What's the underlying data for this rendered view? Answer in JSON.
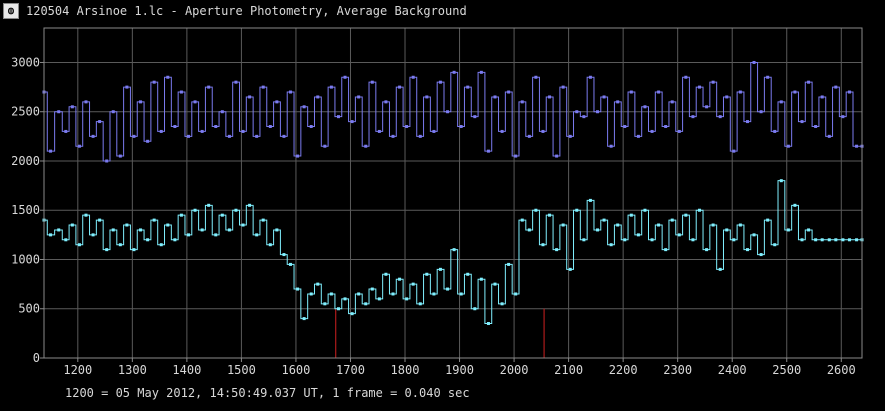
{
  "window": {
    "title": "120504 Arsinoe 1.lc - Aperture Photometry, Average Background",
    "icon": "app-icon-glyph"
  },
  "footer": {
    "note": "1200 = 05 May 2012, 14:50:49.037 UT, 1 frame = 0.040 sec"
  },
  "chart_data": {
    "type": "line",
    "title": "",
    "xlabel": "",
    "ylabel": "",
    "xlim": [
      1138,
      2638
    ],
    "ylim": [
      0,
      3350
    ],
    "x_ticks": [
      1200,
      1300,
      1400,
      1500,
      1600,
      1700,
      1800,
      1900,
      2000,
      2100,
      2200,
      2300,
      2400,
      2500,
      2600
    ],
    "y_ticks": [
      0,
      500,
      1000,
      1500,
      2000,
      2500,
      3000
    ],
    "grid": true,
    "colors": {
      "background": "#000000",
      "grid": "#5a5a5a",
      "axes": "#8a8a8a",
      "series_upper": "#7b7bf0",
      "series_lower": "#80f0ff",
      "marker_lines": "#d02020"
    },
    "markers": [
      1673,
      2055
    ],
    "series": [
      {
        "x": [
          1138,
          1150,
          1165,
          1178,
          1190,
          1203,
          1215,
          1228,
          1240,
          1253,
          1265,
          1278,
          1290,
          1303,
          1315,
          1328,
          1340,
          1353,
          1365,
          1378,
          1390,
          1403,
          1415,
          1428,
          1440,
          1453,
          1465,
          1478,
          1490,
          1503,
          1515,
          1528,
          1540,
          1553,
          1565,
          1578,
          1590,
          1603,
          1615,
          1628,
          1640,
          1653,
          1665,
          1678,
          1690,
          1703,
          1715,
          1728,
          1740,
          1753,
          1765,
          1778,
          1790,
          1803,
          1815,
          1828,
          1840,
          1853,
          1865,
          1878,
          1890,
          1903,
          1915,
          1928,
          1940,
          1953,
          1965,
          1978,
          1990,
          2003,
          2015,
          2028,
          2040,
          2053,
          2065,
          2078,
          2090,
          2103,
          2115,
          2128,
          2140,
          2153,
          2165,
          2178,
          2190,
          2203,
          2215,
          2228,
          2240,
          2253,
          2265,
          2278,
          2290,
          2303,
          2315,
          2328,
          2340,
          2353,
          2365,
          2378,
          2390,
          2403,
          2415,
          2428,
          2440,
          2453,
          2465,
          2478,
          2490,
          2503,
          2515,
          2528,
          2540,
          2553,
          2565,
          2578,
          2590,
          2603,
          2615,
          2628,
          2638
        ],
        "y": [
          2700,
          2100,
          2500,
          2300,
          2550,
          2150,
          2600,
          2250,
          2400,
          2000,
          2500,
          2050,
          2750,
          2250,
          2600,
          2200,
          2800,
          2300,
          2850,
          2350,
          2700,
          2250,
          2600,
          2300,
          2750,
          2350,
          2500,
          2250,
          2800,
          2300,
          2650,
          2250,
          2750,
          2350,
          2600,
          2250,
          2700,
          2050,
          2550,
          2350,
          2650,
          2150,
          2750,
          2450,
          2850,
          2400,
          2650,
          2150,
          2800,
          2300,
          2600,
          2250,
          2750,
          2350,
          2850,
          2250,
          2650,
          2300,
          2800,
          2500,
          2900,
          2350,
          2750,
          2450,
          2900,
          2100,
          2650,
          2300,
          2700,
          2050,
          2600,
          2250,
          2850,
          2300,
          2650,
          2050,
          2750,
          2250,
          2500,
          2450,
          2850,
          2500,
          2650,
          2150,
          2600,
          2350,
          2700,
          2250,
          2550,
          2300,
          2700,
          2350,
          2600,
          2300,
          2850,
          2450,
          2750,
          2550,
          2800,
          2450,
          2650,
          2100,
          2700,
          2400,
          3000,
          2500,
          2850,
          2300,
          2600,
          2150,
          2700,
          2400,
          2800,
          2350,
          2650,
          2250,
          2750,
          2450,
          2700,
          2150,
          2150
        ]
      },
      {
        "x": [
          1138,
          1150,
          1165,
          1178,
          1190,
          1203,
          1215,
          1228,
          1240,
          1253,
          1265,
          1278,
          1290,
          1303,
          1315,
          1328,
          1340,
          1353,
          1365,
          1378,
          1390,
          1403,
          1415,
          1428,
          1440,
          1453,
          1465,
          1478,
          1490,
          1503,
          1515,
          1528,
          1540,
          1553,
          1565,
          1578,
          1590,
          1603,
          1615,
          1628,
          1640,
          1653,
          1665,
          1678,
          1690,
          1703,
          1715,
          1728,
          1740,
          1753,
          1765,
          1778,
          1790,
          1803,
          1815,
          1828,
          1840,
          1853,
          1865,
          1878,
          1890,
          1903,
          1915,
          1928,
          1940,
          1953,
          1965,
          1978,
          1990,
          2003,
          2015,
          2028,
          2040,
          2053,
          2065,
          2078,
          2090,
          2103,
          2115,
          2128,
          2140,
          2153,
          2165,
          2178,
          2190,
          2203,
          2215,
          2228,
          2240,
          2253,
          2265,
          2278,
          2290,
          2303,
          2315,
          2328,
          2340,
          2353,
          2365,
          2378,
          2390,
          2403,
          2415,
          2428,
          2440,
          2453,
          2465,
          2478,
          2490,
          2503,
          2515,
          2528,
          2540,
          2553,
          2565,
          2578,
          2590,
          2603,
          2615,
          2628,
          2638
        ],
        "y": [
          1400,
          1250,
          1300,
          1200,
          1350,
          1150,
          1450,
          1250,
          1400,
          1100,
          1300,
          1150,
          1350,
          1100,
          1300,
          1200,
          1400,
          1150,
          1350,
          1200,
          1450,
          1250,
          1500,
          1300,
          1550,
          1250,
          1450,
          1300,
          1500,
          1350,
          1550,
          1250,
          1400,
          1150,
          1300,
          1050,
          950,
          700,
          400,
          650,
          750,
          550,
          650,
          500,
          600,
          450,
          650,
          550,
          700,
          600,
          850,
          650,
          800,
          600,
          750,
          550,
          850,
          650,
          900,
          700,
          1100,
          650,
          850,
          500,
          800,
          350,
          750,
          550,
          950,
          650,
          1400,
          1300,
          1500,
          1150,
          1450,
          1100,
          1350,
          900,
          1500,
          1200,
          1600,
          1300,
          1400,
          1150,
          1350,
          1200,
          1450,
          1250,
          1500,
          1200,
          1350,
          1100,
          1400,
          1250,
          1450,
          1200,
          1500,
          1100,
          1350,
          900,
          1300,
          1200,
          1350,
          1100,
          1250,
          1050,
          1400,
          1150,
          1800,
          1300,
          1550,
          1200,
          1300,
          1200,
          1200,
          1200,
          1200,
          1200,
          1200,
          1200,
          1200
        ]
      }
    ]
  }
}
